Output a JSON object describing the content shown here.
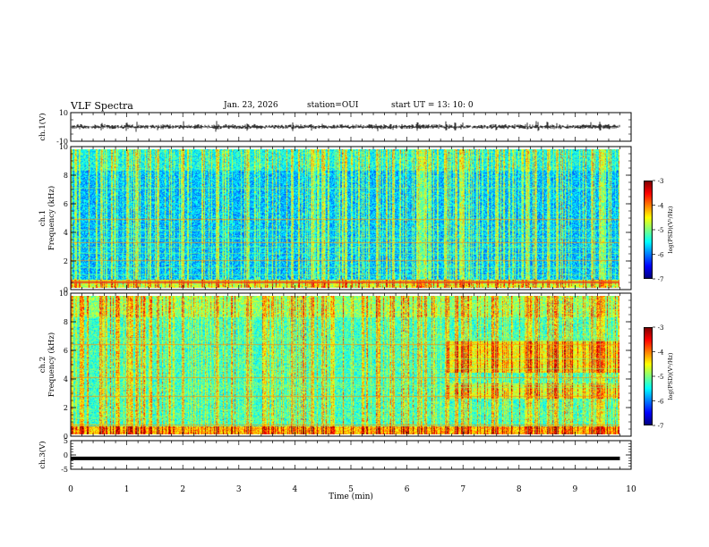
{
  "header": {
    "title": "VLF Spectra",
    "date": "Jan. 23, 2026",
    "station": "station=OUI",
    "start_ut": "start  UT =   13: 10: 0"
  },
  "chart_data": [
    {
      "type": "line",
      "panel": "ch1-waveform",
      "ylabel": "ch.1(V)",
      "ylim": [
        -10,
        10
      ],
      "yticks": [
        "10",
        "-10"
      ],
      "description_series": [
        {
          "name": "ch.1 envelope",
          "x": [
            0,
            2.62,
            4.83,
            7.0,
            8.35,
            8.5,
            9.8
          ],
          "values": [
            0,
            1.0,
            0.9,
            0.8,
            1.6,
            0.9,
            0
          ]
        }
      ]
    },
    {
      "type": "heatmap",
      "panel": "ch1-spectrogram",
      "ylabel": "ch.1\nFrequency (kHz)",
      "ylim": [
        0,
        10
      ],
      "yticks": [
        "0",
        "2",
        "4",
        "6",
        "8",
        "10"
      ],
      "colorbar": {
        "label": "log(PSD)(V²/Hz)",
        "range": [
          -7,
          -3
        ],
        "ticks": [
          "-3",
          "-4",
          "-5",
          "-6",
          "-7"
        ]
      },
      "lines_khz": [
        0.5,
        1.0,
        1.5,
        2.0,
        2.5,
        3.0,
        3.3,
        3.6,
        4.2,
        5.0,
        7.2
      ],
      "bursts_min": [
        0.55,
        1.0,
        1.18,
        1.55,
        2.0,
        2.6,
        3.15,
        3.95,
        4.3,
        4.5,
        5.47,
        5.75,
        6.2,
        6.33,
        6.7,
        6.87,
        7.0,
        7.6,
        8.15,
        8.3,
        8.52,
        8.68,
        9.3,
        9.45
      ]
    },
    {
      "type": "heatmap",
      "panel": "ch2-spectrogram",
      "ylabel": "ch.2\nFrequency (kHz)",
      "ylim": [
        0,
        10
      ],
      "yticks": [
        "0",
        "2",
        "4",
        "6",
        "8",
        "10"
      ],
      "colorbar": {
        "label": "log(PSD)(V²/Hz)",
        "range": [
          -7,
          -3
        ],
        "ticks": [
          "-3",
          "-4",
          "-5",
          "-6",
          "-7"
        ]
      },
      "lines_khz": [
        0.7,
        1.2,
        1.8,
        2.8,
        3.4,
        3.6,
        4.1,
        4.8,
        5.5,
        6.5,
        6.8,
        7.0
      ],
      "bursts_min": [
        0.55,
        1.0,
        1.18,
        1.55,
        2.0,
        2.6,
        3.15,
        3.95,
        4.3,
        4.5,
        5.47,
        5.75,
        6.2,
        6.33,
        6.7,
        6.87,
        7.0,
        7.6,
        8.15,
        8.3,
        8.52,
        8.68,
        9.3,
        9.45
      ],
      "enhanced_band_start_min": 6.7
    },
    {
      "type": "line",
      "panel": "ch3-waveform",
      "ylabel": "ch.3(V)",
      "ylim": [
        -5,
        5
      ],
      "yticks": [
        "5",
        "0",
        "-5"
      ],
      "series": [
        {
          "name": "ch.3",
          "x": [
            0,
            9.8
          ],
          "values": [
            -1.2,
            -1.2
          ]
        }
      ]
    }
  ],
  "xaxis": {
    "label": "Time  (min)",
    "xlim": [
      0,
      10
    ],
    "ticks": [
      "0",
      "1",
      "2",
      "3",
      "4",
      "5",
      "6",
      "7",
      "8",
      "9",
      "10"
    ]
  }
}
